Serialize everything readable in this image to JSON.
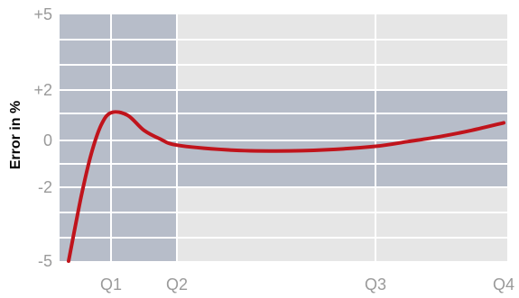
{
  "chart_data": {
    "type": "line",
    "title": "",
    "xlabel": "",
    "ylabel": "Error in %",
    "x_ticks": [
      {
        "label": "Q1",
        "value": 1
      },
      {
        "label": "Q2",
        "value": 2
      },
      {
        "label": "Q3",
        "value": 3
      },
      {
        "label": "Q4",
        "value": 4
      }
    ],
    "y_ticks": [
      {
        "label": "+5",
        "value": 5
      },
      {
        "label": "+2",
        "value": 2
      },
      {
        "label": "0",
        "value": 0
      },
      {
        "label": "-2",
        "value": -2
      },
      {
        "label": "-5",
        "value": -5
      }
    ],
    "xlim": [
      0.15,
      4
    ],
    "ylim": [
      -5,
      5
    ],
    "grid": true,
    "series": [
      {
        "color": "#c0141c",
        "points": [
          {
            "x": 0.15,
            "y": -5.0
          },
          {
            "x": 0.4,
            "y": -2.4
          },
          {
            "x": 0.6,
            "y": -0.6
          },
          {
            "x": 0.8,
            "y": 0.6
          },
          {
            "x": 1.0,
            "y": 1.1
          },
          {
            "x": 1.25,
            "y": 1.0
          },
          {
            "x": 1.5,
            "y": 0.4
          },
          {
            "x": 1.75,
            "y": 0.05
          },
          {
            "x": 2.0,
            "y": -0.2
          },
          {
            "x": 2.25,
            "y": -0.4
          },
          {
            "x": 2.5,
            "y": -0.45
          },
          {
            "x": 2.75,
            "y": -0.4
          },
          {
            "x": 3.0,
            "y": -0.25
          },
          {
            "x": 3.25,
            "y": -0.05
          },
          {
            "x": 3.5,
            "y": 0.15
          },
          {
            "x": 3.75,
            "y": 0.4
          },
          {
            "x": 4.0,
            "y": 0.7
          }
        ]
      }
    ],
    "band_colors": {
      "dark": "#b7bdc9",
      "light": "#e6e6e6",
      "grid_line": "#ffffff",
      "tick_label": "#9a9a9a"
    }
  }
}
